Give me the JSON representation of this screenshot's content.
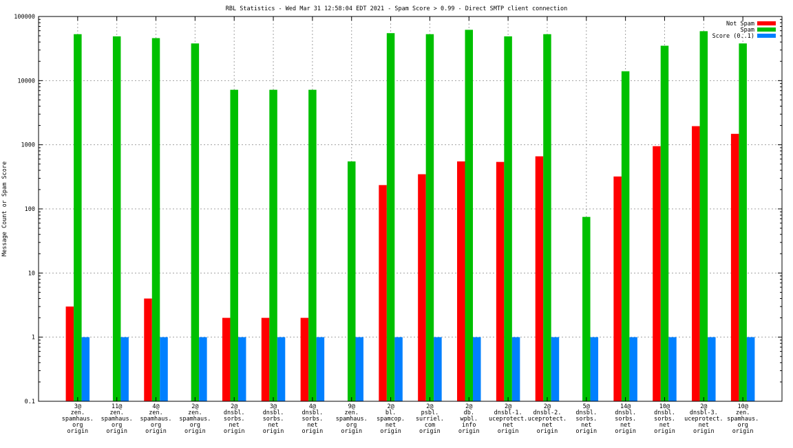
{
  "chart_data": {
    "type": "bar",
    "title": "RBL Statistics - Wed Mar 31 12:58:04 EDT 2021 - Spam Score > 0.99 - Direct SMTP client connection",
    "xlabel": "",
    "ylabel": "Message Count or Spam Score",
    "yscale": "log",
    "ylim": [
      0.1,
      100000
    ],
    "yticks": [
      "0.1",
      "1",
      "10",
      "100",
      "1000",
      "10000",
      "100000"
    ],
    "grid": true,
    "legend_position": "top-right",
    "categories": [
      [
        "3@",
        "zen.",
        "spamhaus.",
        "org",
        "origin"
      ],
      [
        "11@",
        "zen.",
        "spamhaus.",
        "org",
        "origin"
      ],
      [
        "4@",
        "zen.",
        "spamhaus.",
        "org",
        "origin"
      ],
      [
        "2@",
        "zen.",
        "spamhaus.",
        "org",
        "origin"
      ],
      [
        "2@",
        "dnsbl.",
        "sorbs.",
        "net",
        "origin"
      ],
      [
        "3@",
        "dnsbl.",
        "sorbs.",
        "net",
        "origin"
      ],
      [
        "4@",
        "dnsbl.",
        "sorbs.",
        "net",
        "origin"
      ],
      [
        "9@",
        "zen.",
        "spamhaus.",
        "org",
        "origin"
      ],
      [
        "2@",
        "bl.",
        "spamcop.",
        "net",
        "origin"
      ],
      [
        "2@",
        "psbl.",
        "surriel.",
        "com",
        "origin"
      ],
      [
        "2@",
        "db.",
        "wpbl.",
        "info",
        "origin"
      ],
      [
        "2@",
        "dnsbl-1.",
        "uceprotect.",
        "net",
        "origin"
      ],
      [
        "2@",
        "dnsbl-2.",
        "uceprotect.",
        "net",
        "origin"
      ],
      [
        "5@",
        "dnsbl.",
        "sorbs.",
        "net",
        "origin"
      ],
      [
        "14@",
        "dnsbl.",
        "sorbs.",
        "net",
        "origin"
      ],
      [
        "10@",
        "dnsbl.",
        "sorbs.",
        "net",
        "origin"
      ],
      [
        "2@",
        "dnsbl-3.",
        "uceprotect.",
        "net",
        "origin"
      ],
      [
        "10@",
        "zen.",
        "spamhaus.",
        "org",
        "origin"
      ]
    ],
    "series": [
      {
        "name": "Not Spam",
        "color": "#ff0000",
        "values": [
          3,
          null,
          4,
          null,
          2,
          2,
          2,
          null,
          235,
          347,
          550,
          540,
          660,
          null,
          320,
          950,
          1950,
          1480
        ]
      },
      {
        "name": "Spam",
        "color": "#00c000",
        "values": [
          53000,
          49000,
          46000,
          38000,
          7200,
          7200,
          7200,
          550,
          55000,
          53000,
          62000,
          49000,
          53000,
          75,
          14000,
          35000,
          59000,
          38000
        ]
      },
      {
        "name": "Score (0..1)",
        "color": "#0080ff",
        "values": [
          1,
          1,
          1,
          1,
          1,
          1,
          1,
          1,
          1,
          1,
          1,
          1,
          1,
          1,
          1,
          1,
          1,
          1
        ]
      }
    ]
  }
}
